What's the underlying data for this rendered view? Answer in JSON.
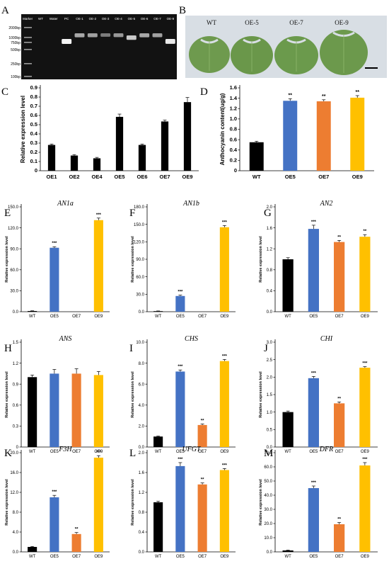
{
  "panelA": {
    "letter": "A",
    "lanes": [
      "Marker",
      "WT",
      "Water",
      "PC",
      "OE-1",
      "OE-2",
      "OE-3",
      "OE-4",
      "OE-5",
      "OE-6",
      "OE-7",
      "OE-9"
    ],
    "marker_labels": [
      "2000bp",
      "1000bp",
      "750bp",
      "500bp",
      "250bp",
      "100bp"
    ],
    "band_intensity": [
      0,
      0,
      0,
      1.0,
      0.55,
      0.5,
      0.3,
      0.45,
      0.75,
      0.55,
      0.5,
      0.95
    ],
    "colors": {
      "gel": "#121212",
      "band": "#f4f4f4"
    }
  },
  "panelB": {
    "letter": "B",
    "leaf_labels": [
      "WT",
      "OE-5",
      "OE-7",
      "OE-9"
    ],
    "colors": {
      "background": "#d8dee4",
      "leaf": "#6e9a4e"
    }
  },
  "chart_data": [
    {
      "id": "C",
      "type": "bar",
      "letter": "C",
      "ylabel": "Relative expression level",
      "categories": [
        "OE1",
        "OE2",
        "OE4",
        "OE5",
        "OE6",
        "OE7",
        "OE9"
      ],
      "values": [
        0.28,
        0.165,
        0.135,
        0.585,
        0.28,
        0.535,
        0.745
      ],
      "errors": [
        0.01,
        0.01,
        0.01,
        0.03,
        0.01,
        0.015,
        0.05
      ],
      "ylim": [
        0,
        0.9
      ],
      "yticks": [
        "0",
        "0.1",
        "0.2",
        "0.3",
        "0.4",
        "0.5",
        "0.6",
        "0.7",
        "0.8",
        "0.9"
      ],
      "colors": [
        "#000000",
        "#000000",
        "#000000",
        "#000000",
        "#000000",
        "#000000",
        "#000000"
      ],
      "sig": [
        "",
        "",
        "",
        "",
        "",
        "",
        ""
      ]
    },
    {
      "id": "D",
      "type": "bar",
      "letter": "D",
      "ylabel": "Anthocyanin content(ug/g)",
      "categories": [
        "WT",
        "OE5",
        "OE7",
        "OE9"
      ],
      "values": [
        0.55,
        1.35,
        1.34,
        1.41
      ],
      "errors": [
        0.02,
        0.04,
        0.03,
        0.04
      ],
      "ylim": [
        0,
        1.6
      ],
      "yticks": [
        "0",
        "0.2",
        "0.4",
        "0.6",
        "0.8",
        "1.0",
        "1.2",
        "1.4",
        "1.6"
      ],
      "colors": [
        "#000000",
        "#4472c4",
        "#ed7d31",
        "#ffc000"
      ],
      "sig": [
        "",
        "**",
        "**",
        "**"
      ]
    },
    {
      "id": "E",
      "type": "bar",
      "letter": "E",
      "title": "AN1a",
      "ylabel": "Relative expression level",
      "categories": [
        "WT",
        "OE5",
        "OE7",
        "OE9"
      ],
      "values": [
        1,
        91.5,
        0,
        131
      ],
      "errors": [
        0.3,
        1.5,
        0,
        3
      ],
      "ylim": [
        0,
        150
      ],
      "yticks": [
        "0.0",
        "30.0",
        "60.0",
        "90.0",
        "120.0",
        "150.0"
      ],
      "colors": [
        "#000000",
        "#4472c4",
        "#ed7d31",
        "#ffc000"
      ],
      "sig": [
        "",
        "***",
        "",
        "***"
      ]
    },
    {
      "id": "F",
      "type": "bar",
      "letter": "F",
      "title": "AN1b",
      "ylabel": "Relative expression level",
      "categories": [
        "WT",
        "OE5",
        "OE7",
        "OE9"
      ],
      "values": [
        1,
        27,
        0,
        145
      ],
      "errors": [
        0.3,
        1.5,
        0,
        3
      ],
      "ylim": [
        0,
        180
      ],
      "yticks": [
        "0.0",
        "30.0",
        "60.0",
        "90.0",
        "120.0",
        "150.0",
        "180.0"
      ],
      "colors": [
        "#000000",
        "#4472c4",
        "#ed7d31",
        "#ffc000"
      ],
      "sig": [
        "",
        "***",
        "",
        "***"
      ]
    },
    {
      "id": "G",
      "type": "bar",
      "letter": "G",
      "title": "AN2",
      "ylabel": "Relative expression level",
      "categories": [
        "WT",
        "OE5",
        "OE7",
        "OE9"
      ],
      "values": [
        1.0,
        1.58,
        1.33,
        1.43
      ],
      "errors": [
        0.03,
        0.07,
        0.03,
        0.04
      ],
      "ylim": [
        0,
        2.0
      ],
      "yticks": [
        "0.0",
        "0.4",
        "0.8",
        "1.2",
        "1.6",
        "2.0"
      ],
      "colors": [
        "#000000",
        "#4472c4",
        "#ed7d31",
        "#ffc000"
      ],
      "sig": [
        "",
        "***",
        "**",
        "**"
      ]
    },
    {
      "id": "H",
      "type": "bar",
      "letter": "H",
      "title": "ANS",
      "ylabel": "Relative expression level",
      "categories": [
        "WT",
        "OE5",
        "OE7",
        "OE9"
      ],
      "values": [
        1.0,
        1.05,
        1.05,
        1.03
      ],
      "errors": [
        0.03,
        0.06,
        0.07,
        0.05
      ],
      "ylim": [
        0,
        1.5
      ],
      "yticks": [
        "0",
        "0.3",
        "0.6",
        "0.9",
        "1.2",
        "1.5"
      ],
      "colors": [
        "#000000",
        "#4472c4",
        "#ed7d31",
        "#ffc000"
      ],
      "sig": [
        "",
        "",
        "",
        ""
      ]
    },
    {
      "id": "I",
      "type": "bar",
      "letter": "I",
      "title": "CHS",
      "ylabel": "Relative expression level",
      "categories": [
        "WT",
        "OE5",
        "OE7",
        "OE9"
      ],
      "values": [
        1.0,
        7.2,
        2.1,
        8.2
      ],
      "errors": [
        0.05,
        0.15,
        0.1,
        0.15
      ],
      "ylim": [
        0,
        10
      ],
      "yticks": [
        "0.0",
        "2.0",
        "4.0",
        "6.0",
        "8.0",
        "10.0"
      ],
      "colors": [
        "#000000",
        "#4472c4",
        "#ed7d31",
        "#ffc000"
      ],
      "sig": [
        "",
        "***",
        "**",
        "***"
      ]
    },
    {
      "id": "J",
      "type": "bar",
      "letter": "J",
      "title": "CHI",
      "ylabel": "Relative expression level",
      "categories": [
        "WT",
        "OE5",
        "OE7",
        "OE9"
      ],
      "values": [
        1.0,
        1.97,
        1.25,
        2.27
      ],
      "errors": [
        0.03,
        0.05,
        0.04,
        0.03
      ],
      "ylim": [
        0,
        3.0
      ],
      "yticks": [
        "0.0",
        "0.5",
        "1.0",
        "1.5",
        "2.0",
        "2.5",
        "3.0"
      ],
      "colors": [
        "#000000",
        "#4472c4",
        "#ed7d31",
        "#ffc000"
      ],
      "sig": [
        "",
        "***",
        "**",
        "***"
      ]
    },
    {
      "id": "K",
      "type": "bar",
      "letter": "K",
      "title": "F3H",
      "ylabel": "Relative expression level",
      "categories": [
        "WT",
        "OE5",
        "OE7",
        "OE9"
      ],
      "values": [
        1.0,
        11.0,
        3.6,
        19.0
      ],
      "errors": [
        0.1,
        0.4,
        0.3,
        0.4
      ],
      "ylim": [
        0,
        20
      ],
      "yticks": [
        "0.0",
        "4.0",
        "8.0",
        "12.0",
        "16.0",
        "20.0"
      ],
      "colors": [
        "#000000",
        "#4472c4",
        "#ed7d31",
        "#ffc000"
      ],
      "sig": [
        "",
        "***",
        "**",
        "***"
      ]
    },
    {
      "id": "L",
      "type": "bar",
      "letter": "L",
      "title": "UFGT",
      "ylabel": "Relative expression level",
      "categories": [
        "WT",
        "OE5",
        "OE7",
        "OE9"
      ],
      "values": [
        1.0,
        1.73,
        1.36,
        1.65
      ],
      "errors": [
        0.02,
        0.07,
        0.03,
        0.03
      ],
      "ylim": [
        0,
        2.0
      ],
      "yticks": [
        "0.0",
        "0.4",
        "0.8",
        "1.2",
        "1.6",
        "2.0"
      ],
      "colors": [
        "#000000",
        "#4472c4",
        "#ed7d31",
        "#ffc000"
      ],
      "sig": [
        "",
        "***",
        "**",
        "***"
      ]
    },
    {
      "id": "M",
      "type": "bar",
      "letter": "M",
      "title": "DFR",
      "ylabel": "Relative expression level",
      "categories": [
        "WT",
        "OE5",
        "OE7",
        "OE9"
      ],
      "values": [
        1.0,
        45.0,
        19.5,
        61.0
      ],
      "errors": [
        0.2,
        1.5,
        1.2,
        2.0
      ],
      "ylim": [
        0,
        70
      ],
      "yticks": [
        "0.0",
        "10.0",
        "20.0",
        "30.0",
        "40.0",
        "50.0",
        "60.0",
        "70.0"
      ],
      "colors": [
        "#000000",
        "#4472c4",
        "#ed7d31",
        "#ffc000"
      ],
      "sig": [
        "",
        "***",
        "**",
        "***"
      ]
    }
  ]
}
